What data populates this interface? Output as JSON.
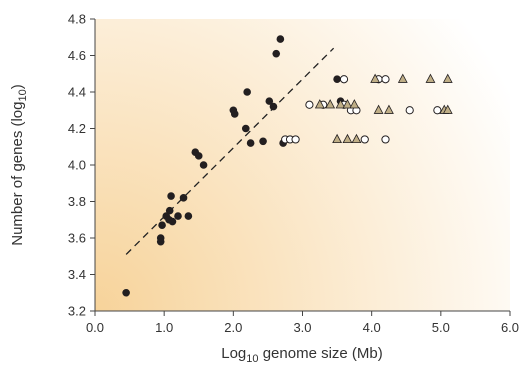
{
  "chart_data": {
    "type": "scatter",
    "xlabel": "Log10 genome size (Mb)",
    "ylabel": "Number of genes (log10)",
    "xlim": [
      0.0,
      6.0
    ],
    "ylim": [
      3.2,
      4.8
    ],
    "xticks": [
      "0.0",
      "1.0",
      "2.0",
      "3.0",
      "4.0",
      "5.0",
      "6.0"
    ],
    "yticks": [
      "3.2",
      "3.4",
      "3.6",
      "3.8",
      "4.0",
      "4.2",
      "4.4",
      "4.6",
      "4.8"
    ],
    "background": {
      "corner_color": "#f7d39a",
      "fade_color": "#ffffff"
    },
    "trend_line": {
      "style": "dashed",
      "color": "#222222",
      "points": [
        [
          0.45,
          3.51
        ],
        [
          3.45,
          4.64
        ]
      ]
    },
    "series": [
      {
        "marker": "filled-circle",
        "color": "#231f20",
        "points": [
          [
            0.45,
            3.3
          ],
          [
            0.95,
            3.58
          ],
          [
            0.95,
            3.6
          ],
          [
            0.97,
            3.67
          ],
          [
            1.03,
            3.72
          ],
          [
            1.07,
            3.7
          ],
          [
            1.08,
            3.75
          ],
          [
            1.1,
            3.83
          ],
          [
            1.12,
            3.69
          ],
          [
            1.2,
            3.72
          ],
          [
            1.28,
            3.82
          ],
          [
            1.35,
            3.72
          ],
          [
            1.45,
            4.07
          ],
          [
            1.5,
            4.05
          ],
          [
            1.57,
            4.0
          ],
          [
            2.0,
            4.3
          ],
          [
            2.02,
            4.28
          ],
          [
            2.18,
            4.2
          ],
          [
            2.2,
            4.4
          ],
          [
            2.25,
            4.12
          ],
          [
            2.43,
            4.13
          ],
          [
            2.52,
            4.35
          ],
          [
            2.58,
            4.32
          ],
          [
            2.62,
            4.61
          ],
          [
            2.68,
            4.69
          ],
          [
            2.72,
            4.12
          ],
          [
            3.5,
            4.47
          ],
          [
            3.55,
            4.35
          ]
        ]
      },
      {
        "marker": "open-circle",
        "color": "#231f20",
        "points": [
          [
            2.75,
            4.14
          ],
          [
            2.82,
            4.14
          ],
          [
            2.9,
            4.14
          ],
          [
            3.1,
            4.33
          ],
          [
            3.3,
            4.33
          ],
          [
            3.6,
            4.47
          ],
          [
            3.6,
            4.33
          ],
          [
            3.7,
            4.3
          ],
          [
            3.78,
            4.3
          ],
          [
            3.9,
            4.14
          ],
          [
            4.1,
            4.47
          ],
          [
            4.2,
            4.47
          ],
          [
            4.2,
            4.14
          ],
          [
            4.55,
            4.3
          ],
          [
            4.95,
            4.3
          ]
        ]
      },
      {
        "marker": "triangle",
        "color": "#bfae86",
        "points": [
          [
            3.25,
            4.33
          ],
          [
            3.4,
            4.33
          ],
          [
            3.5,
            4.14
          ],
          [
            3.55,
            4.33
          ],
          [
            3.65,
            4.33
          ],
          [
            3.65,
            4.14
          ],
          [
            3.75,
            4.33
          ],
          [
            3.78,
            4.14
          ],
          [
            4.05,
            4.47
          ],
          [
            4.1,
            4.3
          ],
          [
            4.25,
            4.3
          ],
          [
            4.45,
            4.47
          ],
          [
            4.85,
            4.47
          ],
          [
            5.05,
            4.3
          ],
          [
            5.1,
            4.3
          ],
          [
            5.1,
            4.47
          ]
        ]
      }
    ],
    "grid": false
  }
}
